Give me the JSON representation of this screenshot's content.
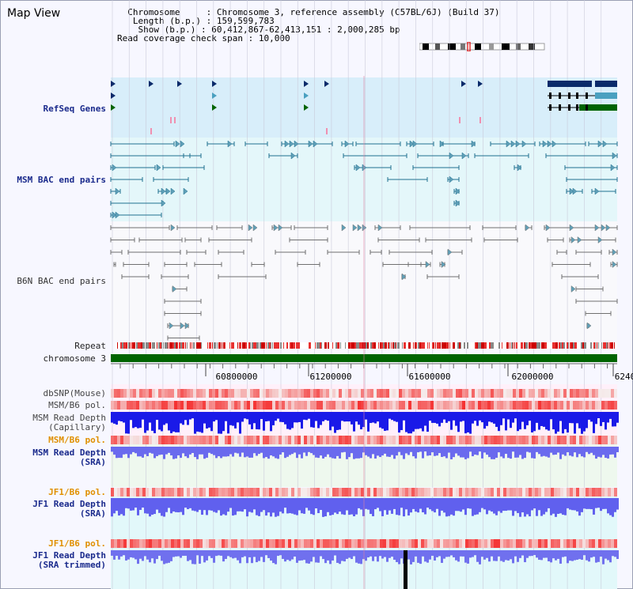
{
  "header": {
    "title": "Map View",
    "chromosome_label": "Chromosome",
    "chromosome_value": "Chromosome 3, reference assembly (C57BL/6J) (Build 37)",
    "length_label": "Length (b.p.)",
    "length_value": "159,599,783",
    "show_label": "Show (b.p.)",
    "show_value": "60,412,867-62,413,151 : 2,000,285 bp",
    "span_label": "Read coverage check span",
    "span_value": "10,000"
  },
  "tracks": {
    "refseq": "RefSeq Genes",
    "msm_bac": "MSM BAC end pairs",
    "b6n_bac": "B6N BAC end pairs",
    "repeat": "Repeat",
    "chromosome": "chromosome 3",
    "dbsnp": "dbSNP(Mouse)",
    "msm_pol_1": "MSM/B6 pol.",
    "msm_depth_cap_1": "MSM Read Depth",
    "msm_depth_cap_2": "(Capillary)",
    "msm_pol_2": "MSM/B6 pol.",
    "msm_depth_sra_1": "MSM Read Depth",
    "msm_depth_sra_2": "(SRA)",
    "jf1_pol_1": "JF1/B6 pol.",
    "jf1_depth_sra_1": "JF1 Read Depth",
    "jf1_depth_sra_2": "(SRA)",
    "jf1_pol_2": "JF1/B6 pol.",
    "jf1_depth_trim_1": "JF1 Read Depth",
    "jf1_depth_trim_2": "(SRA trimmed)"
  },
  "axis": {
    "ticks": [
      "60800000",
      "61200000",
      "61600000",
      "62000000",
      "6240"
    ]
  },
  "colors": {
    "refseq_bg": "#d8eefa",
    "msm_bg": "#e4f7fa",
    "chromosome": "#006400",
    "depth_blue": "#1010e0",
    "depth_light": "#7070ee",
    "snp_red": "#f07070",
    "msm_line": "#207090",
    "b6n_line": "#707070"
  }
}
